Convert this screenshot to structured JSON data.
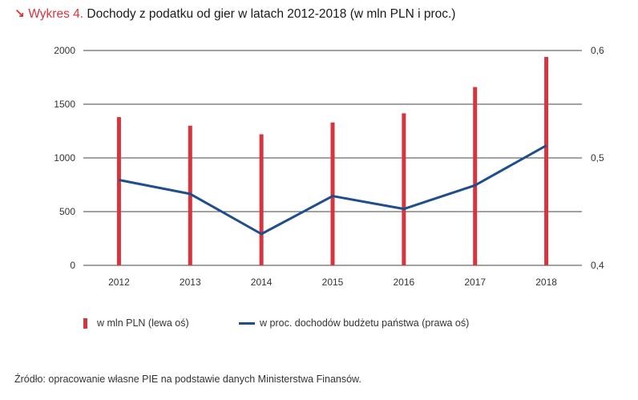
{
  "header": {
    "arrow": "↘",
    "label": "Wykres 4.",
    "text": "Dochody z podatku od gier w latach 2012-2018 (w mln PLN i proc.)"
  },
  "chart_data": {
    "type": "bar+line",
    "categories": [
      "2012",
      "2013",
      "2014",
      "2015",
      "2016",
      "2017",
      "2018"
    ],
    "series": [
      {
        "name": "w mln PLN (lewa oś)",
        "type": "bar",
        "axis": "left",
        "values": [
          1380,
          1300,
          1220,
          1330,
          1415,
          1660,
          1940
        ],
        "color": "#d6343f"
      },
      {
        "name": "w proc. dochodów budżetu państwa (prawa oś)",
        "type": "line",
        "axis": "right",
        "values": [
          0.4795,
          0.4665,
          0.4292,
          0.4645,
          0.4525,
          0.4745,
          0.5115
        ],
        "color": "#1f4e8c"
      }
    ],
    "left_axis": {
      "min": 0,
      "max": 2000,
      "ticks": [
        "0",
        "500",
        "1000",
        "1500",
        "2000"
      ]
    },
    "right_axis": {
      "min": 0.4,
      "max": 0.6,
      "ticks": [
        "0,4",
        "0,5",
        "0,6"
      ]
    },
    "grid": true,
    "legend_position": "bottom"
  },
  "legend": {
    "bar_label": "w mln PLN (lewa oś)",
    "line_label": "w proc. dochodów budżetu państwa (prawa oś)"
  },
  "source": "Źródło: opracowanie własne PIE na podstawie danych Ministerstwa Finansów."
}
